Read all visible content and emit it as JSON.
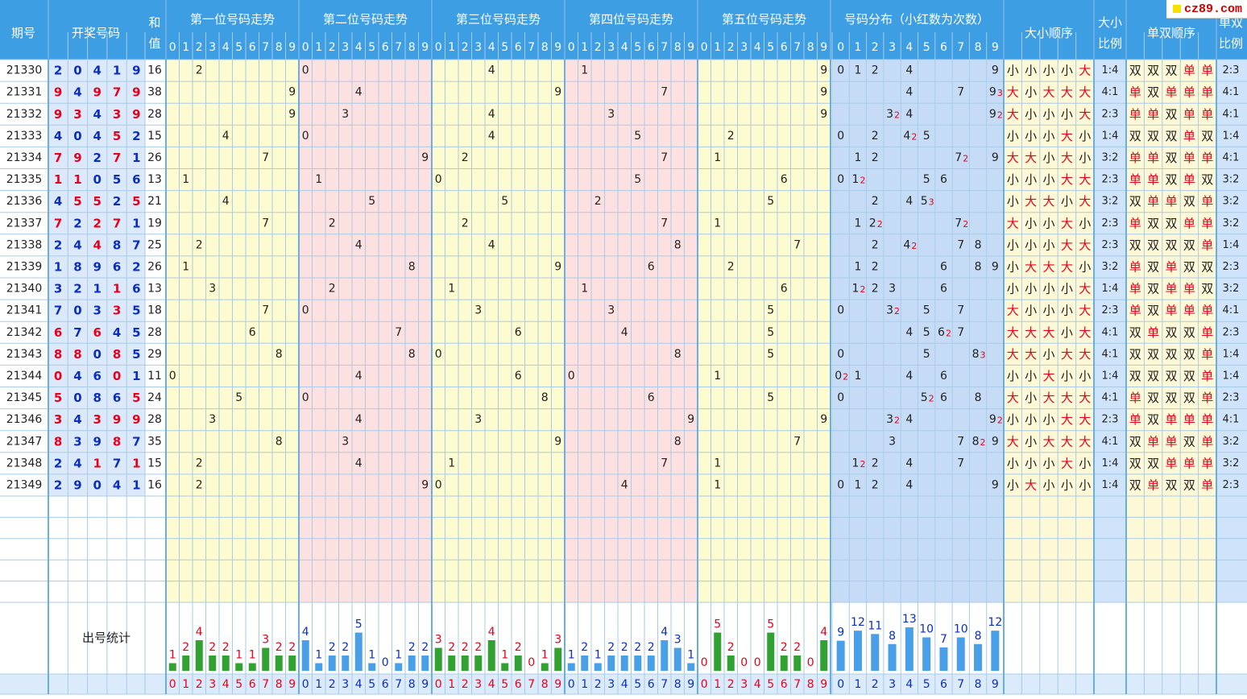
{
  "watermark": "cz89.com",
  "colors": {
    "header": "#3e9ee3",
    "border": "#a9cbe7",
    "red": "#e8001c",
    "blue": "#0a2fbf",
    "yellow": "#fdfbd0",
    "pink": "#fde1e1",
    "distblue": "#c6dcf6",
    "order_bg": "#fdf8d6",
    "right_blue": "#cfe4fb",
    "green_bar": "#31a131",
    "blue_bar": "#4a9fe9"
  },
  "header": {
    "period": "期号",
    "draw": "开奖号码",
    "sum": "和值",
    "pos": [
      "第一位号码走势",
      "第二位号码走势",
      "第三位号码走势",
      "第四位号码走势",
      "第五位号码走势"
    ],
    "dist": "号码分布（小红数为次数）",
    "size_order": "大小顺序",
    "size_ratio": "大小比例",
    "oe_order": "单双顺序",
    "oe_ratio": "单双比例",
    "digits": [
      "0",
      "1",
      "2",
      "3",
      "4",
      "5",
      "6",
      "7",
      "8",
      "9"
    ]
  },
  "stats_label": "出号统计",
  "chart_data": {
    "type": "table",
    "rows": [
      {
        "period": "21330",
        "draw": [
          2,
          0,
          4,
          1,
          9
        ],
        "colors": [
          "b",
          "b",
          "b",
          "b",
          "b"
        ],
        "sum": 16,
        "dist": {
          "0": 1,
          "1": 1,
          "2": 1,
          "4": 1,
          "9": 1
        },
        "size": [
          "小",
          "小",
          "小",
          "小",
          "大"
        ],
        "size_ratio": "1:4",
        "oe": [
          "双",
          "双",
          "双",
          "单",
          "单"
        ],
        "oe_ratio": "2:3"
      },
      {
        "period": "21331",
        "draw": [
          9,
          4,
          9,
          7,
          9
        ],
        "colors": [
          "r",
          "b",
          "r",
          "r",
          "r"
        ],
        "sum": 38,
        "dist": {
          "4": 1,
          "7": 1,
          "9": 3
        },
        "size": [
          "大",
          "小",
          "大",
          "大",
          "大"
        ],
        "size_ratio": "4:1",
        "oe": [
          "单",
          "双",
          "单",
          "单",
          "单"
        ],
        "oe_ratio": "4:1"
      },
      {
        "period": "21332",
        "draw": [
          9,
          3,
          4,
          3,
          9
        ],
        "colors": [
          "r",
          "r",
          "b",
          "r",
          "r"
        ],
        "sum": 28,
        "dist": {
          "3": 2,
          "4": 1,
          "9": 2
        },
        "size": [
          "大",
          "小",
          "小",
          "小",
          "大"
        ],
        "size_ratio": "2:3",
        "oe": [
          "单",
          "单",
          "双",
          "单",
          "单"
        ],
        "oe_ratio": "4:1"
      },
      {
        "period": "21333",
        "draw": [
          4,
          0,
          4,
          5,
          2
        ],
        "colors": [
          "b",
          "b",
          "b",
          "r",
          "b"
        ],
        "sum": 15,
        "dist": {
          "0": 1,
          "2": 1,
          "4": 2,
          "5": 1
        },
        "size": [
          "小",
          "小",
          "小",
          "大",
          "小"
        ],
        "size_ratio": "1:4",
        "oe": [
          "双",
          "双",
          "双",
          "单",
          "双"
        ],
        "oe_ratio": "1:4"
      },
      {
        "period": "21334",
        "draw": [
          7,
          9,
          2,
          7,
          1
        ],
        "colors": [
          "r",
          "r",
          "b",
          "r",
          "b"
        ],
        "sum": 26,
        "dist": {
          "1": 1,
          "2": 1,
          "7": 2,
          "9": 1
        },
        "size": [
          "大",
          "大",
          "小",
          "大",
          "小"
        ],
        "size_ratio": "3:2",
        "oe": [
          "单",
          "单",
          "双",
          "单",
          "单"
        ],
        "oe_ratio": "4:1"
      },
      {
        "period": "21335",
        "draw": [
          1,
          1,
          0,
          5,
          6
        ],
        "colors": [
          "r",
          "r",
          "b",
          "b",
          "b"
        ],
        "sum": 13,
        "dist": {
          "0": 1,
          "1": 2,
          "5": 1,
          "6": 1
        },
        "size": [
          "小",
          "小",
          "小",
          "大",
          "大"
        ],
        "size_ratio": "2:3",
        "oe": [
          "单",
          "单",
          "双",
          "单",
          "双"
        ],
        "oe_ratio": "3:2"
      },
      {
        "period": "21336",
        "draw": [
          4,
          5,
          5,
          2,
          5
        ],
        "colors": [
          "b",
          "r",
          "r",
          "b",
          "r"
        ],
        "sum": 21,
        "dist": {
          "2": 1,
          "4": 1,
          "5": 3
        },
        "size": [
          "小",
          "大",
          "大",
          "小",
          "大"
        ],
        "size_ratio": "3:2",
        "oe": [
          "双",
          "单",
          "单",
          "双",
          "单"
        ],
        "oe_ratio": "3:2"
      },
      {
        "period": "21337",
        "draw": [
          7,
          2,
          2,
          7,
          1
        ],
        "colors": [
          "r",
          "b",
          "r",
          "r",
          "b"
        ],
        "sum": 19,
        "dist": {
          "1": 1,
          "2": 2,
          "7": 2
        },
        "size": [
          "大",
          "小",
          "小",
          "大",
          "小"
        ],
        "size_ratio": "2:3",
        "oe": [
          "单",
          "双",
          "双",
          "单",
          "单"
        ],
        "oe_ratio": "3:2"
      },
      {
        "period": "21338",
        "draw": [
          2,
          4,
          4,
          8,
          7
        ],
        "colors": [
          "b",
          "b",
          "r",
          "b",
          "b"
        ],
        "sum": 25,
        "dist": {
          "2": 1,
          "4": 2,
          "7": 1,
          "8": 1
        },
        "size": [
          "小",
          "小",
          "小",
          "大",
          "大"
        ],
        "size_ratio": "2:3",
        "oe": [
          "双",
          "双",
          "双",
          "双",
          "单"
        ],
        "oe_ratio": "1:4"
      },
      {
        "period": "21339",
        "draw": [
          1,
          8,
          9,
          6,
          2
        ],
        "colors": [
          "b",
          "b",
          "b",
          "b",
          "b"
        ],
        "sum": 26,
        "dist": {
          "1": 1,
          "2": 1,
          "6": 1,
          "8": 1,
          "9": 1
        },
        "size": [
          "小",
          "大",
          "大",
          "大",
          "小"
        ],
        "size_ratio": "3:2",
        "oe": [
          "单",
          "双",
          "单",
          "双",
          "双"
        ],
        "oe_ratio": "2:3"
      },
      {
        "period": "21340",
        "draw": [
          3,
          2,
          1,
          1,
          6
        ],
        "colors": [
          "b",
          "b",
          "b",
          "r",
          "b"
        ],
        "sum": 13,
        "dist": {
          "1": 2,
          "2": 1,
          "3": 1,
          "6": 1
        },
        "size": [
          "小",
          "小",
          "小",
          "小",
          "大"
        ],
        "size_ratio": "1:4",
        "oe": [
          "单",
          "双",
          "单",
          "单",
          "双"
        ],
        "oe_ratio": "3:2"
      },
      {
        "period": "21341",
        "draw": [
          7,
          0,
          3,
          3,
          5
        ],
        "colors": [
          "b",
          "b",
          "b",
          "r",
          "b"
        ],
        "sum": 18,
        "dist": {
          "0": 1,
          "3": 2,
          "5": 1,
          "7": 1
        },
        "size": [
          "大",
          "小",
          "小",
          "小",
          "大"
        ],
        "size_ratio": "2:3",
        "oe": [
          "单",
          "双",
          "单",
          "单",
          "单"
        ],
        "oe_ratio": "4:1"
      },
      {
        "period": "21342",
        "draw": [
          6,
          7,
          6,
          4,
          5
        ],
        "colors": [
          "r",
          "b",
          "r",
          "b",
          "b"
        ],
        "sum": 28,
        "dist": {
          "4": 1,
          "5": 1,
          "6": 2,
          "7": 1
        },
        "size": [
          "大",
          "大",
          "大",
          "小",
          "大"
        ],
        "size_ratio": "4:1",
        "oe": [
          "双",
          "单",
          "双",
          "双",
          "单"
        ],
        "oe_ratio": "2:3"
      },
      {
        "period": "21343",
        "draw": [
          8,
          8,
          0,
          8,
          5
        ],
        "colors": [
          "r",
          "r",
          "b",
          "r",
          "b"
        ],
        "sum": 29,
        "dist": {
          "0": 1,
          "5": 1,
          "8": 3
        },
        "size": [
          "大",
          "大",
          "小",
          "大",
          "大"
        ],
        "size_ratio": "4:1",
        "oe": [
          "双",
          "双",
          "双",
          "双",
          "单"
        ],
        "oe_ratio": "1:4"
      },
      {
        "period": "21344",
        "draw": [
          0,
          4,
          6,
          0,
          1
        ],
        "colors": [
          "r",
          "b",
          "b",
          "r",
          "b"
        ],
        "sum": 11,
        "dist": {
          "0": 2,
          "1": 1,
          "4": 1,
          "6": 1
        },
        "size": [
          "小",
          "小",
          "大",
          "小",
          "小"
        ],
        "size_ratio": "1:4",
        "oe": [
          "双",
          "双",
          "双",
          "双",
          "单"
        ],
        "oe_ratio": "1:4"
      },
      {
        "period": "21345",
        "draw": [
          5,
          0,
          8,
          6,
          5
        ],
        "colors": [
          "r",
          "b",
          "b",
          "b",
          "r"
        ],
        "sum": 24,
        "dist": {
          "0": 1,
          "5": 2,
          "6": 1,
          "8": 1
        },
        "size": [
          "大",
          "小",
          "大",
          "大",
          "大"
        ],
        "size_ratio": "4:1",
        "oe": [
          "单",
          "双",
          "双",
          "双",
          "单"
        ],
        "oe_ratio": "2:3"
      },
      {
        "period": "21346",
        "draw": [
          3,
          4,
          3,
          9,
          9
        ],
        "colors": [
          "r",
          "b",
          "r",
          "r",
          "r"
        ],
        "sum": 28,
        "dist": {
          "3": 2,
          "4": 1,
          "9": 2
        },
        "size": [
          "小",
          "小",
          "小",
          "大",
          "大"
        ],
        "size_ratio": "2:3",
        "oe": [
          "单",
          "双",
          "单",
          "单",
          "单"
        ],
        "oe_ratio": "4:1"
      },
      {
        "period": "21347",
        "draw": [
          8,
          3,
          9,
          8,
          7
        ],
        "colors": [
          "r",
          "b",
          "b",
          "r",
          "b"
        ],
        "sum": 35,
        "dist": {
          "3": 1,
          "7": 1,
          "8": 2,
          "9": 1
        },
        "size": [
          "大",
          "小",
          "大",
          "大",
          "大"
        ],
        "size_ratio": "4:1",
        "oe": [
          "双",
          "单",
          "单",
          "双",
          "单"
        ],
        "oe_ratio": "3:2"
      },
      {
        "period": "21348",
        "draw": [
          2,
          4,
          1,
          7,
          1
        ],
        "colors": [
          "b",
          "b",
          "r",
          "b",
          "r"
        ],
        "sum": 15,
        "dist": {
          "1": 2,
          "2": 1,
          "4": 1,
          "7": 1
        },
        "size": [
          "小",
          "小",
          "小",
          "大",
          "小"
        ],
        "size_ratio": "1:4",
        "oe": [
          "双",
          "双",
          "单",
          "单",
          "单"
        ],
        "oe_ratio": "3:2"
      },
      {
        "period": "21349",
        "draw": [
          2,
          9,
          0,
          4,
          1
        ],
        "colors": [
          "b",
          "b",
          "b",
          "b",
          "b"
        ],
        "sum": 16,
        "dist": {
          "0": 1,
          "1": 1,
          "2": 1,
          "4": 1,
          "9": 1
        },
        "size": [
          "小",
          "大",
          "小",
          "小",
          "小"
        ],
        "size_ratio": "1:4",
        "oe": [
          "双",
          "单",
          "双",
          "双",
          "单"
        ],
        "oe_ratio": "2:3"
      }
    ],
    "stats": {
      "pos": [
        [
          1,
          2,
          4,
          2,
          2,
          1,
          1,
          3,
          2,
          2
        ],
        [
          4,
          1,
          2,
          2,
          5,
          1,
          0,
          1,
          2,
          2
        ],
        [
          3,
          2,
          2,
          2,
          4,
          1,
          2,
          0,
          1,
          3
        ],
        [
          1,
          2,
          1,
          2,
          2,
          2,
          2,
          4,
          3,
          1
        ],
        [
          0,
          5,
          2,
          0,
          0,
          5,
          2,
          2,
          0,
          4
        ]
      ],
      "dist": [
        9,
        12,
        11,
        8,
        13,
        10,
        7,
        10,
        8,
        12
      ]
    }
  }
}
